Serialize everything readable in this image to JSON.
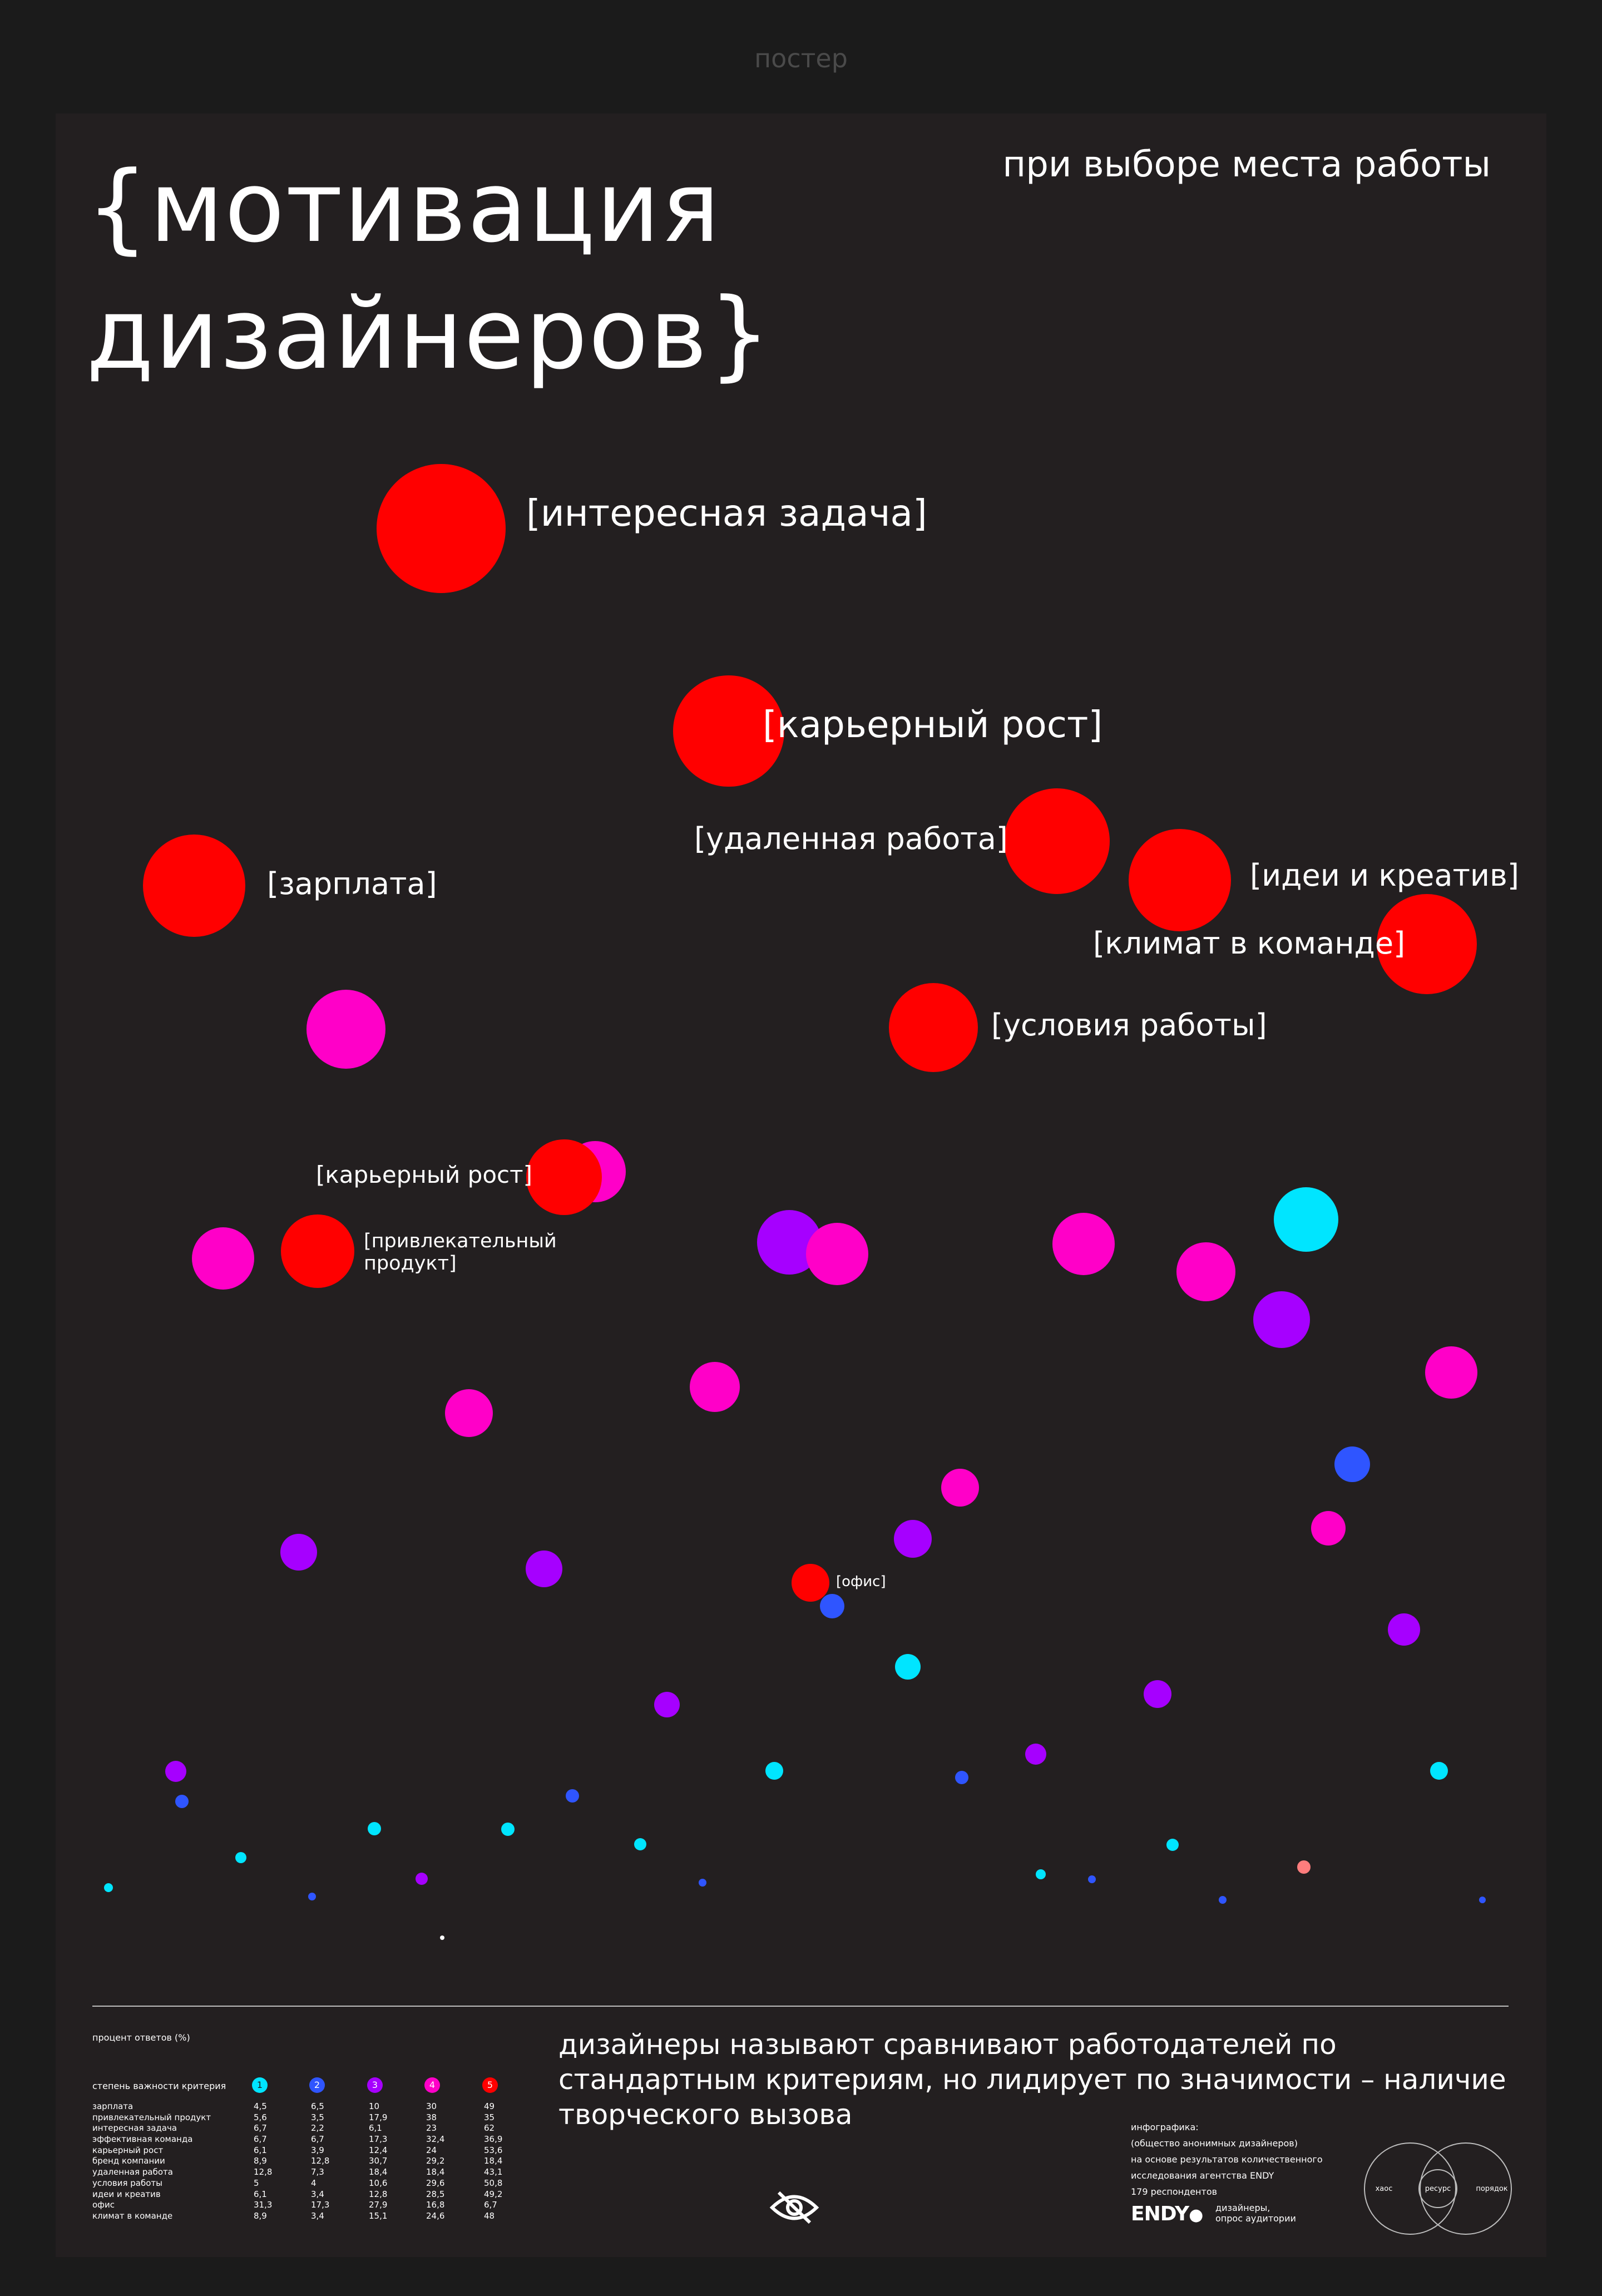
{
  "page": {
    "label": "постер"
  },
  "poster": {
    "title_line1": "{мотивация",
    "title_line2": "дизайнеров}",
    "subtitle": "при выборе места работы"
  },
  "colors": {
    "background": "#1b1b1b",
    "poster": "#231f20",
    "level_1": "#00e5ff",
    "level_2": "#2f55ff",
    "level_3": "#a600ff",
    "level_4": "#ff00c8",
    "level_5": "#ff0000"
  },
  "bubble_labels": {
    "interesting_task": "[интересная задача]",
    "career_growth": "[карьерный рост]",
    "remote_work": "[удаленная работа]",
    "salary": "[зарплата]",
    "ideas_creative": "[идеи и креатив]",
    "team_climate": "[климат в команде]",
    "work_conditions": "[условия работы]",
    "career_growth_2": "[карьерный рост]",
    "attractive_product_line1": "[привлекательный",
    "attractive_product_line2": "продукт]",
    "office": "[офис]"
  },
  "footer": {
    "table_caption": "процент ответов (%)",
    "importance_label": "степень важности критерия",
    "levels": [
      "1",
      "2",
      "3",
      "4",
      "5"
    ],
    "rows": [
      {
        "name": "зарплата",
        "values": [
          "4,5",
          "6,5",
          "10",
          "30",
          "49"
        ]
      },
      {
        "name": "привлекательный продукт",
        "values": [
          "5,6",
          "3,5",
          "17,9",
          "38",
          "35"
        ]
      },
      {
        "name": "интересная задача",
        "values": [
          "6,7",
          "2,2",
          "6,1",
          "23",
          "62"
        ]
      },
      {
        "name": "эффективная команда",
        "values": [
          "6,7",
          "6,7",
          "17,3",
          "32,4",
          "36,9"
        ]
      },
      {
        "name": "карьерный рост",
        "values": [
          "6,1",
          "3,9",
          "12,4",
          "24",
          "53,6"
        ]
      },
      {
        "name": "бренд компании",
        "values": [
          "8,9",
          "12,8",
          "30,7",
          "29,2",
          "18,4"
        ]
      },
      {
        "name": "удаленная работа",
        "values": [
          "12,8",
          "7,3",
          "18,4",
          "18,4",
          "43,1"
        ]
      },
      {
        "name": "условия работы",
        "values": [
          "5",
          "4",
          "10,6",
          "29,6",
          "50,8"
        ]
      },
      {
        "name": "идеи и креатив",
        "values": [
          "6,1",
          "3,4",
          "12,8",
          "28,5",
          "49,2"
        ]
      },
      {
        "name": "офис",
        "values": [
          "31,3",
          "17,3",
          "27,9",
          "16,8",
          "6,7"
        ]
      },
      {
        "name": "климат в команде",
        "values": [
          "8,9",
          "3,4",
          "15,1",
          "24,6",
          "48"
        ]
      }
    ],
    "statement": "дизайнеры называют сравнивают работодателей по стандартным критериям, но лидирует по значимости – наличие творческого вызова",
    "credits": {
      "line1": "инфографика:",
      "line2": "(общество анонимных дизайнеров)",
      "line3": "на основе результатов количественного",
      "line4": "исследования агентства ENDY",
      "line5": "179 респондентов",
      "logo": "ENDY",
      "note_line1": "дизайнеры,",
      "note_line2": "опрос аудитории"
    },
    "venn": {
      "left": "хаос",
      "center": "ресурс",
      "right": "порядок"
    },
    "eye_icon": "eye-crossed-icon"
  }
}
